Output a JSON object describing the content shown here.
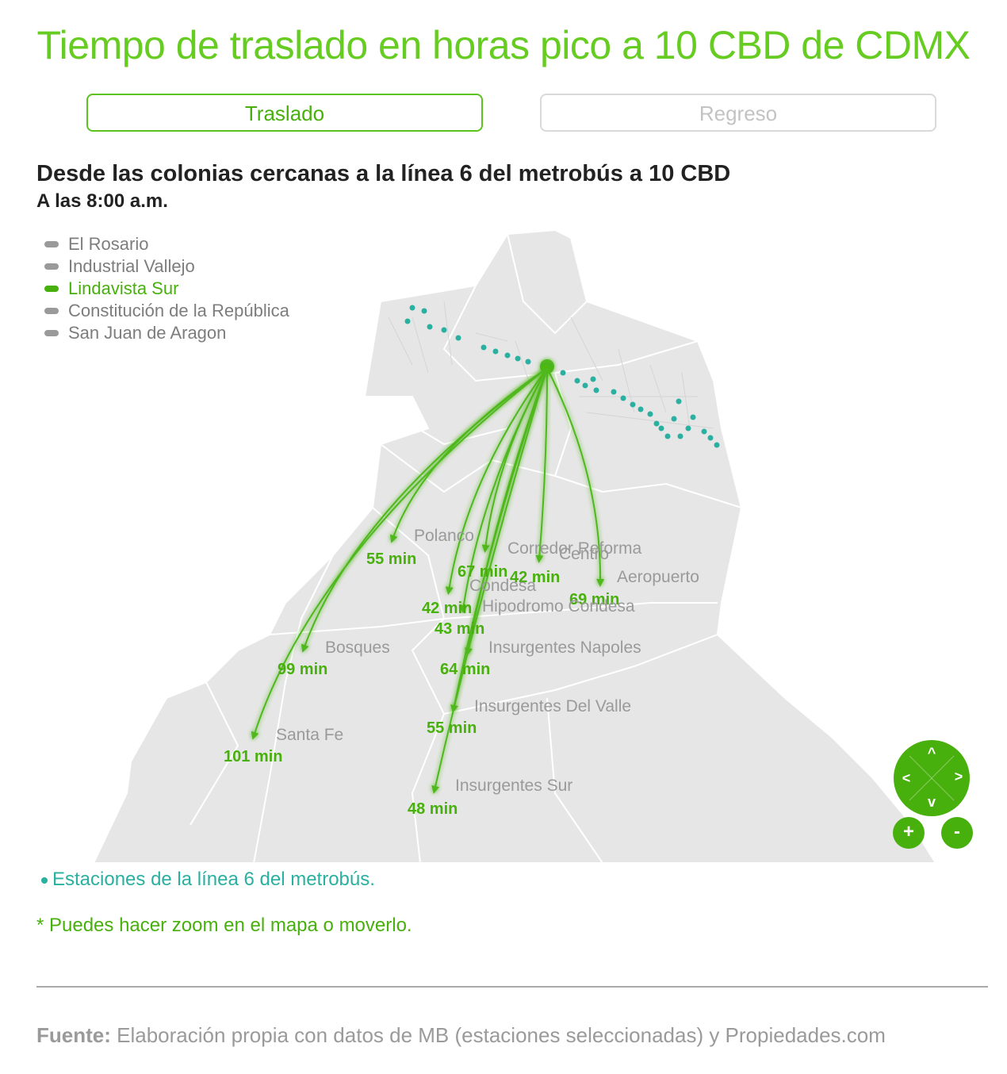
{
  "title": "Tiempo de traslado en horas pico a 10 CBD de CDMX",
  "tabs": [
    {
      "label": "Traslado",
      "active": true
    },
    {
      "label": "Regreso",
      "active": false
    }
  ],
  "subtitle": "Desde las colonias cercanas a la línea 6 del metrobús a 10 CBD",
  "time": "A las 8:00 a.m.",
  "legend": [
    {
      "label": "El Rosario",
      "active": false
    },
    {
      "label": "Industrial Vallejo",
      "active": false
    },
    {
      "label": "Lindavista Sur",
      "active": true
    },
    {
      "label": "Constitución de la República",
      "active": false
    },
    {
      "label": "San Juan de Aragon",
      "active": false
    }
  ],
  "destinations": [
    {
      "name": "Polanco",
      "time": "55 min"
    },
    {
      "name": "Corredor Reforma",
      "time": "67 min"
    },
    {
      "name": "Centro",
      "time": "42 min"
    },
    {
      "name": "Aeropuerto",
      "time": "69 min"
    },
    {
      "name": "Condesa",
      "time": "42 min"
    },
    {
      "name": "Hipodromo Condesa",
      "time": "43 min"
    },
    {
      "name": "Bosques",
      "time": "99 min"
    },
    {
      "name": "Insurgentes Napoles",
      "time": "64 min"
    },
    {
      "name": "Insurgentes Del Valle",
      "time": "55 min"
    },
    {
      "name": "Santa Fe",
      "time": "101 min"
    },
    {
      "name": "Insurgentes Sur",
      "time": "48 min"
    }
  ],
  "nav": {
    "up": "^",
    "down": "v",
    "left": "<",
    "right": ">",
    "zoom_in": "+",
    "zoom_out": "-"
  },
  "notes": {
    "stations": "Estaciones de la línea 6 del metrobús.",
    "zoom": "* Puedes hacer zoom en el mapa o moverlo."
  },
  "source": {
    "label": "Fuente:",
    "text": "Elaboración propia con datos de MB (estaciones seleccionadas) y Propiedades.com"
  },
  "colors": {
    "accent": "#48b00d",
    "title": "#66cc22",
    "stations": "#2ab0a0",
    "land": "#e6e6e6"
  }
}
